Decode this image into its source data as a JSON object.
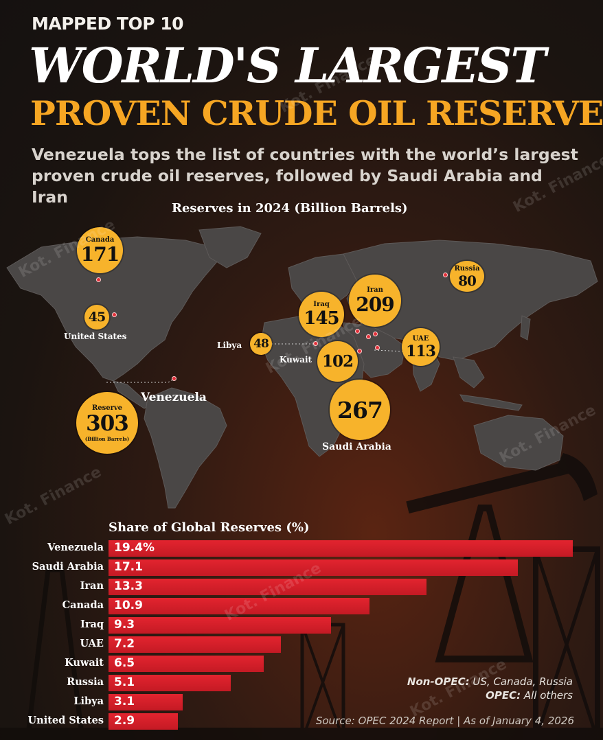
{
  "header": {
    "kicker": "MAPPED TOP 10",
    "title_line1": "WORLD'S LARGEST",
    "title_line2": "PROVEN CRUDE OIL RESERVES",
    "subtitle": "Venezuela tops the list of countries with the world’s largest proven crude oil reserves, followed by Saudi Arabia and Iran"
  },
  "map": {
    "title": "Reserves in 2024  (Billion Barrels)",
    "labels": {
      "canada_name": "Canada",
      "canada_value": "171",
      "russia_name": "Russia",
      "russia_value": "80",
      "iran_name": "Iran",
      "iran_value": "209",
      "iraq_name": "Iraq",
      "iraq_value": "145",
      "us_value": "45",
      "us_name": "United States",
      "libya_name": "Libya",
      "libya_value": "48",
      "kuwait_name": "Kuwait",
      "kuwait_value": "102",
      "uae_name": "UAE",
      "uae_value": "113",
      "saudi_value": "267",
      "saudi_name": "Saudi Arabia",
      "venezuela_name": "Venezuela",
      "venezuela_reserve": "Reserve",
      "venezuela_value": "303",
      "venezuela_unit": "(Billion Barrels)"
    }
  },
  "colors": {
    "accent_gold": "#f7b32b",
    "title_orange": "#f6a623",
    "bar_red": "#d9202a",
    "pin_red": "#e0303a"
  },
  "chart_data": [
    {
      "type": "bar",
      "title": "Reserves in 2024  (Billion Barrels)",
      "categories": [
        "Venezuela",
        "Saudi Arabia",
        "Iran",
        "Canada",
        "Iraq",
        "UAE",
        "Kuwait",
        "Russia",
        "Libya",
        "United States"
      ],
      "values": [
        303,
        267,
        209,
        171,
        145,
        113,
        102,
        80,
        48,
        45
      ],
      "display": "map-bubbles"
    },
    {
      "type": "bar",
      "orientation": "horizontal",
      "title": "Share of Global Reserves (%)",
      "categories": [
        "Venezuela",
        "Saudi Arabia",
        "Iran",
        "Canada",
        "Iraq",
        "UAE",
        "Kuwait",
        "Russia",
        "Libya",
        "United States"
      ],
      "values": [
        19.4,
        17.1,
        13.3,
        10.9,
        9.3,
        7.2,
        6.5,
        5.1,
        3.1,
        2.9
      ],
      "value_labels": [
        "19.4%",
        "17.1",
        "13.3",
        "10.9",
        "9.3",
        "7.2",
        "6.5",
        "5.1",
        "3.1",
        "2.9"
      ],
      "xlim": [
        0,
        19.4
      ],
      "grid": false
    }
  ],
  "notes": {
    "non_opec_label": "Non-OPEC:",
    "non_opec_text": " US, Canada, Russia",
    "opec_label": "OPEC:",
    "opec_text": " All others",
    "source": "Source: OPEC 2024 Report  |  As of January 4, 2026"
  },
  "watermark": {
    "line1": "Kot.",
    "line2": "Finance"
  }
}
